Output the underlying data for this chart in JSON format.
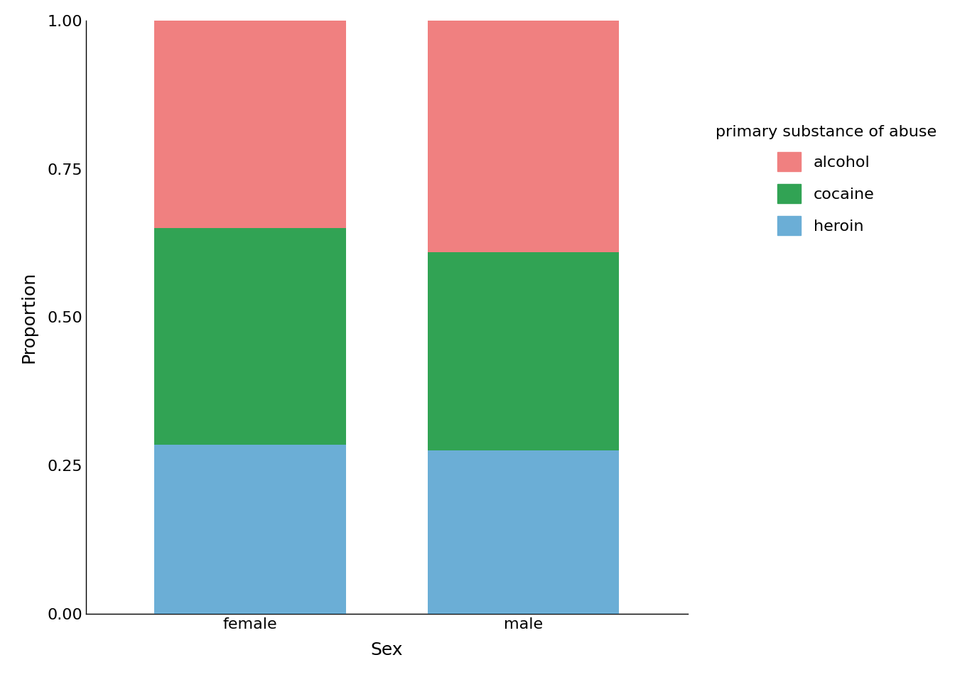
{
  "categories": [
    "female",
    "male"
  ],
  "substances": [
    "heroin",
    "cocaine",
    "alcohol"
  ],
  "colors": {
    "heroin": "#6baed6",
    "cocaine": "#31a354",
    "alcohol": "#f08080"
  },
  "proportions": {
    "female": {
      "heroin": 0.285,
      "cocaine": 0.365,
      "alcohol": 0.35
    },
    "male": {
      "heroin": 0.275,
      "cocaine": 0.335,
      "alcohol": 0.39
    }
  },
  "ylabel": "Proportion",
  "xlabel": "Sex",
  "legend_title": "primary substance of abuse",
  "ylim": [
    0,
    1.0
  ],
  "yticks": [
    0.0,
    0.25,
    0.5,
    0.75,
    1.0
  ],
  "bar_width": 0.7,
  "background_color": "#ffffff",
  "legend_labels": [
    "alcohol",
    "cocaine",
    "heroin"
  ],
  "legend_colors": [
    "#f08080",
    "#31a354",
    "#6baed6"
  ],
  "x_positions": [
    0,
    1
  ],
  "xlim": [
    -0.6,
    1.6
  ]
}
